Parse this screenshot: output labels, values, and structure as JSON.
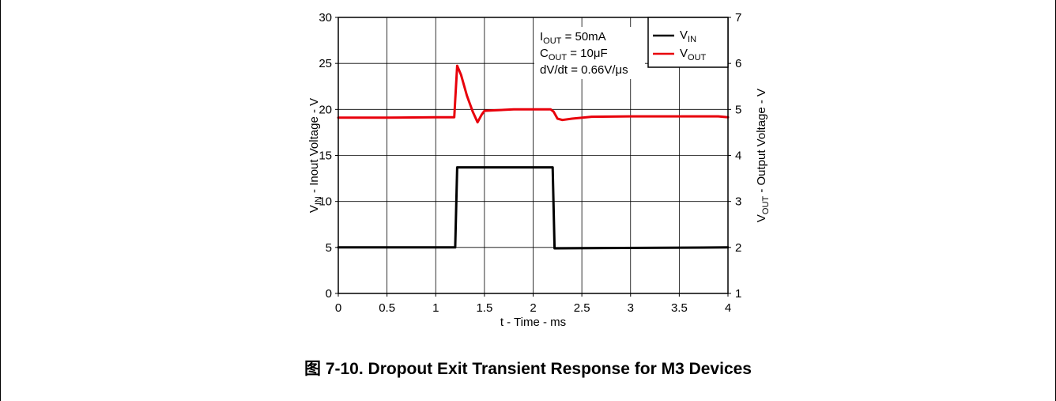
{
  "caption": "图 7-10. Dropout Exit Transient Response for M3 Devices",
  "chart_data": {
    "type": "line",
    "x": {
      "label": "t - Time - ms",
      "range": [
        0,
        4
      ],
      "ticks": [
        0,
        0.5,
        1,
        1.5,
        2,
        2.5,
        3,
        3.5,
        4
      ],
      "tick_labels": [
        "0",
        "0.5",
        "1",
        "1.5",
        "2",
        "2.5",
        "3",
        "3.5",
        "4"
      ]
    },
    "y_left": {
      "label": {
        "main": "V",
        "sub": "IN",
        "rest": " - Inout Voltage - V"
      },
      "range": [
        0,
        30
      ],
      "ticks": [
        0,
        5,
        10,
        15,
        20,
        25,
        30
      ]
    },
    "y_right": {
      "label": {
        "main": "V",
        "sub": "OUT",
        "rest": " - Output Voltage - V"
      },
      "range": [
        1,
        7
      ],
      "ticks": [
        1,
        2,
        3,
        4,
        5,
        6,
        7
      ]
    },
    "grid": true,
    "legend": {
      "placement": "top-right",
      "entries": [
        {
          "main": "V",
          "sub": "IN"
        },
        {
          "main": "V",
          "sub": "OUT"
        }
      ]
    },
    "annotation": [
      {
        "main": "I",
        "sub": "OUT",
        "rest": " = 50mA"
      },
      {
        "main": "C",
        "sub": "OUT",
        "rest": " = 10μF"
      },
      {
        "main": "dV/dt = 0.66V/μs",
        "sub": "",
        "rest": ""
      }
    ],
    "series": [
      {
        "name": "VIN",
        "axis": "left",
        "color": "#000000",
        "points": [
          [
            0,
            5.0
          ],
          [
            1.2,
            5.0
          ],
          [
            1.22,
            13.7
          ],
          [
            2.2,
            13.7
          ],
          [
            2.22,
            4.9
          ],
          [
            4,
            5.0
          ]
        ]
      },
      {
        "name": "VOUT",
        "axis": "right",
        "color": "#e8000b",
        "points": [
          [
            0,
            4.82
          ],
          [
            0.5,
            4.82
          ],
          [
            1.0,
            4.83
          ],
          [
            1.19,
            4.83
          ],
          [
            1.2,
            5.2
          ],
          [
            1.22,
            5.95
          ],
          [
            1.26,
            5.75
          ],
          [
            1.32,
            5.3
          ],
          [
            1.38,
            4.95
          ],
          [
            1.43,
            4.72
          ],
          [
            1.47,
            4.88
          ],
          [
            1.5,
            4.97
          ],
          [
            1.6,
            4.98
          ],
          [
            1.8,
            5.0
          ],
          [
            2.0,
            5.0
          ],
          [
            2.18,
            5.0
          ],
          [
            2.21,
            4.95
          ],
          [
            2.25,
            4.8
          ],
          [
            2.3,
            4.77
          ],
          [
            2.4,
            4.8
          ],
          [
            2.6,
            4.84
          ],
          [
            3.0,
            4.85
          ],
          [
            3.5,
            4.85
          ],
          [
            3.9,
            4.85
          ],
          [
            4.0,
            4.83
          ]
        ]
      }
    ]
  }
}
